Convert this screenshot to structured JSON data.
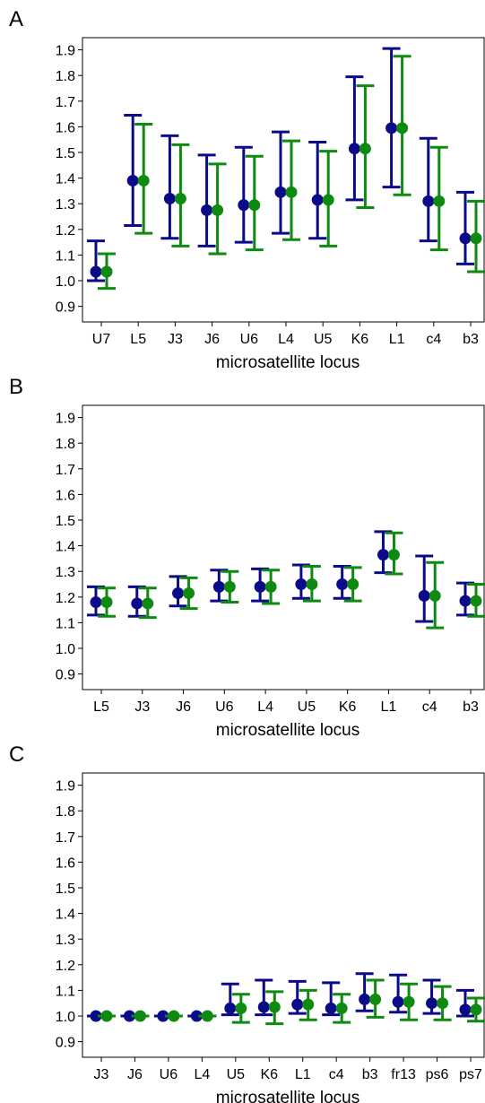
{
  "colors": {
    "series1": "#0b0b8a",
    "series2": "#0f8a10",
    "frame": "#000000"
  },
  "chart_data": [
    {
      "panel": "A",
      "type": "errorbar",
      "xlabel": "microsatellite locus",
      "ylabel": "",
      "ylim": [
        0.85,
        1.95
      ],
      "yticks": [
        0.9,
        1.0,
        1.1,
        1.2,
        1.3,
        1.4,
        1.5,
        1.6,
        1.7,
        1.8,
        1.9
      ],
      "ytick_labels": [
        "0.9",
        "1.0",
        "1.1",
        "1.2",
        "1.3",
        "1.4",
        "1.5",
        "1.6",
        "1.7",
        "1.8",
        "1.9"
      ],
      "grid": false,
      "categories": [
        "U7",
        "L5",
        "J3",
        "J6",
        "U6",
        "L4",
        "U5",
        "K6",
        "L1",
        "c4",
        "b3"
      ],
      "series": [
        {
          "color": "series1",
          "values": [
            1.035,
            1.39,
            1.32,
            1.275,
            1.295,
            1.345,
            1.315,
            1.515,
            1.595,
            1.31,
            1.165
          ],
          "lower": [
            1.0,
            1.215,
            1.165,
            1.135,
            1.15,
            1.185,
            1.165,
            1.315,
            1.365,
            1.155,
            1.065
          ],
          "upper": [
            1.155,
            1.645,
            1.565,
            1.49,
            1.52,
            1.58,
            1.54,
            1.795,
            1.905,
            1.555,
            1.345
          ]
        },
        {
          "color": "series2",
          "values": [
            1.035,
            1.39,
            1.32,
            1.275,
            1.295,
            1.345,
            1.315,
            1.515,
            1.595,
            1.31,
            1.165
          ],
          "lower": [
            0.97,
            1.185,
            1.135,
            1.105,
            1.12,
            1.16,
            1.135,
            1.285,
            1.335,
            1.12,
            1.035
          ],
          "upper": [
            1.105,
            1.61,
            1.53,
            1.455,
            1.485,
            1.545,
            1.505,
            1.76,
            1.875,
            1.52,
            1.31
          ]
        }
      ]
    },
    {
      "panel": "B",
      "type": "errorbar",
      "xlabel": "microsatellite locus",
      "ylabel": "",
      "ylim": [
        0.85,
        1.95
      ],
      "yticks": [
        0.9,
        1.0,
        1.1,
        1.2,
        1.3,
        1.4,
        1.5,
        1.6,
        1.7,
        1.8,
        1.9
      ],
      "ytick_labels": [
        "0.9",
        "1.0",
        "1.1",
        "1.2",
        "1.3",
        "1.4",
        "1.5",
        "1.6",
        "1.7",
        "1.8",
        "1.9"
      ],
      "grid": false,
      "categories": [
        "L5",
        "J3",
        "J6",
        "U6",
        "L4",
        "U5",
        "K6",
        "L1",
        "c4",
        "b3"
      ],
      "series": [
        {
          "color": "series1",
          "values": [
            1.18,
            1.175,
            1.215,
            1.24,
            1.24,
            1.25,
            1.25,
            1.365,
            1.205,
            1.185
          ],
          "lower": [
            1.13,
            1.125,
            1.165,
            1.185,
            1.185,
            1.195,
            1.195,
            1.295,
            1.105,
            1.13
          ],
          "upper": [
            1.24,
            1.24,
            1.28,
            1.305,
            1.31,
            1.325,
            1.32,
            1.455,
            1.36,
            1.255
          ]
        },
        {
          "color": "series2",
          "values": [
            1.18,
            1.175,
            1.215,
            1.24,
            1.24,
            1.25,
            1.25,
            1.365,
            1.205,
            1.185
          ],
          "lower": [
            1.125,
            1.12,
            1.155,
            1.18,
            1.175,
            1.185,
            1.185,
            1.29,
            1.08,
            1.125
          ],
          "upper": [
            1.235,
            1.235,
            1.275,
            1.3,
            1.305,
            1.32,
            1.315,
            1.45,
            1.335,
            1.25
          ]
        }
      ]
    },
    {
      "panel": "C",
      "type": "errorbar",
      "xlabel": "microsatellite locus",
      "ylabel": "",
      "ylim": [
        0.85,
        1.95
      ],
      "yticks": [
        0.9,
        1.0,
        1.1,
        1.2,
        1.3,
        1.4,
        1.5,
        1.6,
        1.7,
        1.8,
        1.9
      ],
      "ytick_labels": [
        "0.9",
        "1.0",
        "1.1",
        "1.2",
        "1.3",
        "1.4",
        "1.5",
        "1.6",
        "1.7",
        "1.8",
        "1.9"
      ],
      "grid": false,
      "categories": [
        "J3",
        "J6",
        "U6",
        "L4",
        "U5",
        "K6",
        "L1",
        "c4",
        "b3",
        "fr13",
        "ps6",
        "ps7"
      ],
      "series": [
        {
          "color": "series1",
          "values": [
            1.0,
            1.0,
            1.0,
            1.0,
            1.03,
            1.035,
            1.045,
            1.03,
            1.065,
            1.055,
            1.05,
            1.025
          ],
          "lower": [
            1.0,
            1.0,
            1.0,
            1.0,
            1.005,
            1.005,
            1.01,
            1.005,
            1.02,
            1.015,
            1.01,
            1.0
          ],
          "upper": [
            1.0,
            1.0,
            1.0,
            1.0,
            1.125,
            1.14,
            1.135,
            1.13,
            1.165,
            1.16,
            1.14,
            1.1
          ]
        },
        {
          "color": "series2",
          "values": [
            1.0,
            1.0,
            1.0,
            1.0,
            1.03,
            1.035,
            1.045,
            1.03,
            1.065,
            1.055,
            1.05,
            1.025
          ],
          "lower": [
            1.0,
            1.0,
            1.0,
            1.0,
            0.975,
            0.97,
            0.985,
            0.975,
            0.995,
            0.985,
            0.985,
            0.98
          ],
          "upper": [
            1.0,
            1.0,
            1.0,
            1.0,
            1.085,
            1.095,
            1.1,
            1.085,
            1.14,
            1.125,
            1.115,
            1.07
          ]
        }
      ]
    }
  ]
}
